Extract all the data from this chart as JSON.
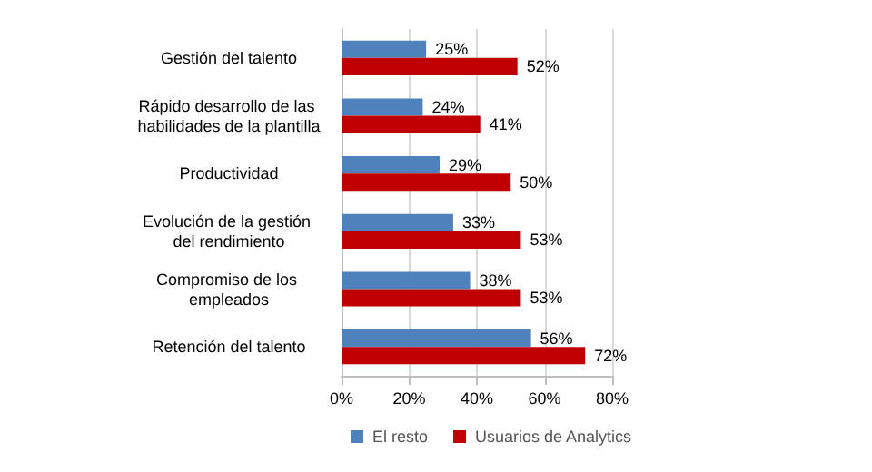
{
  "chart_data": {
    "type": "bar",
    "orientation": "horizontal",
    "categories": [
      "Gestión del talento",
      "Rápido desarrollo de las habilidades de la plantilla",
      "Productividad",
      "Evolución de la gestión del rendimiento",
      "Compromiso de los empleados",
      "Retención del talento"
    ],
    "series": [
      {
        "name": "El resto",
        "color": "#4f81bd",
        "values": [
          25,
          24,
          29,
          33,
          38,
          56
        ],
        "value_labels": [
          "25%",
          "24%",
          "29%",
          "33%",
          "38%",
          "56%"
        ]
      },
      {
        "name": "Usuarios de Analytics",
        "color": "#c00000",
        "values": [
          52,
          41,
          50,
          53,
          53,
          72
        ],
        "value_labels": [
          "52%",
          "41%",
          "50%",
          "53%",
          "53%",
          "72%"
        ]
      }
    ],
    "xlim": [
      0,
      80
    ],
    "xticks": [
      {
        "value": 0,
        "label": "0%"
      },
      {
        "value": 20,
        "label": "20%"
      },
      {
        "value": 40,
        "label": "40%"
      },
      {
        "value": 60,
        "label": "60%"
      },
      {
        "value": 80,
        "label": "80%"
      }
    ],
    "grid": "x",
    "legend": "bottom"
  }
}
